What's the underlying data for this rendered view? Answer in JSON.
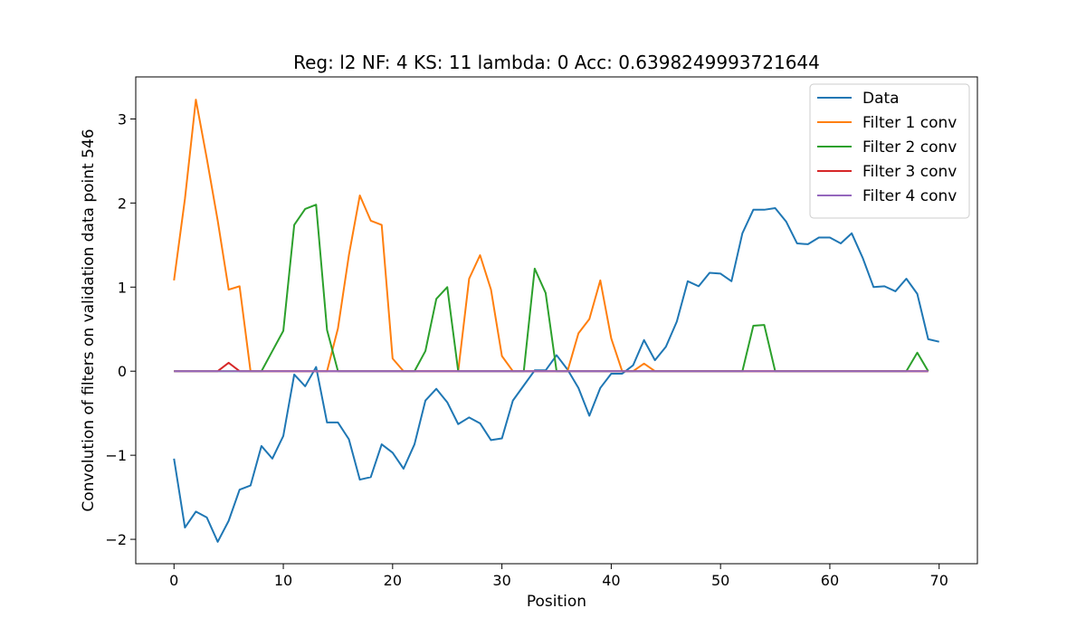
{
  "chart_data": {
    "type": "line",
    "title": "Reg: l2  NF: 4  KS: 11  lambda: 0 Acc: 0.6398249993721644",
    "xlabel": "Position",
    "ylabel": "Convolution of filters on validation data point 546",
    "xlim": [
      -3.5,
      73.5
    ],
    "ylim": [
      -2.29,
      3.5
    ],
    "x_ticks": [
      0,
      10,
      20,
      30,
      40,
      50,
      60,
      70
    ],
    "x_tick_labels": [
      "0",
      "10",
      "20",
      "30",
      "40",
      "50",
      "60",
      "70"
    ],
    "y_ticks": [
      -2,
      -1,
      0,
      1,
      2,
      3
    ],
    "y_tick_labels": [
      "−2",
      "−1",
      "0",
      "1",
      "2",
      "3"
    ],
    "grid": false,
    "legend_position": "top-right",
    "series": [
      {
        "name": "Data",
        "color": "#1f77b4",
        "values": [
          -1.04,
          -1.86,
          -1.67,
          -1.74,
          -2.03,
          -1.78,
          -1.41,
          -1.36,
          -0.89,
          -1.04,
          -0.77,
          -0.04,
          -0.18,
          0.05,
          -0.61,
          -0.61,
          -0.81,
          -1.29,
          -1.26,
          -0.87,
          -0.97,
          -1.16,
          -0.87,
          -0.35,
          -0.21,
          -0.37,
          -0.63,
          -0.55,
          -0.62,
          -0.82,
          -0.8,
          -0.35,
          -0.17,
          0.01,
          0.01,
          0.19,
          0.02,
          -0.2,
          -0.53,
          -0.2,
          -0.03,
          -0.03,
          0.07,
          0.37,
          0.13,
          0.29,
          0.59,
          1.07,
          1.01,
          1.17,
          1.16,
          1.07,
          1.64,
          1.92,
          1.92,
          1.94,
          1.78,
          1.52,
          1.51,
          1.59,
          1.59,
          1.52,
          1.64,
          1.35,
          1.0,
          1.01,
          0.95,
          1.1,
          0.92,
          0.38,
          0.35
        ]
      },
      {
        "name": "Filter 1 conv",
        "color": "#ff7f0e",
        "values": [
          1.08,
          2.05,
          3.23,
          2.53,
          1.79,
          0.97,
          1.01,
          0,
          0,
          0,
          0,
          0,
          0,
          0,
          0,
          0.51,
          1.38,
          2.09,
          1.79,
          1.74,
          0.15,
          0,
          0,
          0,
          0,
          0,
          0,
          1.1,
          1.38,
          0.97,
          0.18,
          0,
          0,
          0,
          0,
          0,
          0,
          0.45,
          0.62,
          1.08,
          0.39,
          0,
          0,
          0.09,
          0,
          0,
          0,
          0,
          0,
          0,
          0,
          0,
          0,
          0,
          0,
          0,
          0,
          0,
          0,
          0,
          0,
          0,
          0,
          0,
          0,
          0,
          0,
          0,
          0,
          0
        ]
      },
      {
        "name": "Filter 2 conv",
        "color": "#2ca02c",
        "values": [
          0,
          0,
          0,
          0,
          0,
          0,
          0,
          0,
          0,
          0.24,
          0.48,
          1.74,
          1.93,
          1.98,
          0.49,
          0,
          0,
          0,
          0,
          0,
          0,
          0,
          0,
          0.24,
          0.86,
          1.0,
          0,
          0,
          0,
          0,
          0,
          0,
          0,
          1.22,
          0.93,
          0,
          0,
          0,
          0,
          0,
          0,
          0,
          0,
          0,
          0,
          0,
          0,
          0,
          0,
          0,
          0,
          0,
          0,
          0.54,
          0.55,
          0,
          0,
          0,
          0,
          0,
          0,
          0,
          0,
          0,
          0,
          0,
          0,
          0,
          0.22,
          0
        ]
      },
      {
        "name": "Filter 3 conv",
        "color": "#d62728",
        "values": [
          0,
          0,
          0,
          0,
          0,
          0.1,
          0,
          0,
          0,
          0,
          0,
          0,
          0,
          0,
          0,
          0,
          0,
          0,
          0,
          0,
          0,
          0,
          0,
          0,
          0,
          0,
          0,
          0,
          0,
          0,
          0,
          0,
          0,
          0,
          0,
          0,
          0,
          0,
          0,
          0,
          0,
          0,
          0,
          0,
          0,
          0,
          0,
          0,
          0,
          0,
          0,
          0,
          0,
          0,
          0,
          0,
          0,
          0,
          0,
          0,
          0,
          0,
          0,
          0,
          0,
          0,
          0,
          0,
          0,
          0
        ]
      },
      {
        "name": "Filter 4 conv",
        "color": "#9467bd",
        "values": [
          0,
          0,
          0,
          0,
          0,
          0,
          0,
          0,
          0,
          0,
          0,
          0,
          0,
          0,
          0,
          0,
          0,
          0,
          0,
          0,
          0,
          0,
          0,
          0,
          0,
          0,
          0,
          0,
          0,
          0,
          0,
          0,
          0,
          0,
          0,
          0,
          0,
          0,
          0,
          0,
          0,
          0,
          0,
          0,
          0,
          0,
          0,
          0,
          0,
          0,
          0,
          0,
          0,
          0,
          0,
          0,
          0,
          0,
          0,
          0,
          0,
          0,
          0,
          0,
          0,
          0,
          0,
          0,
          0,
          0
        ]
      }
    ]
  }
}
